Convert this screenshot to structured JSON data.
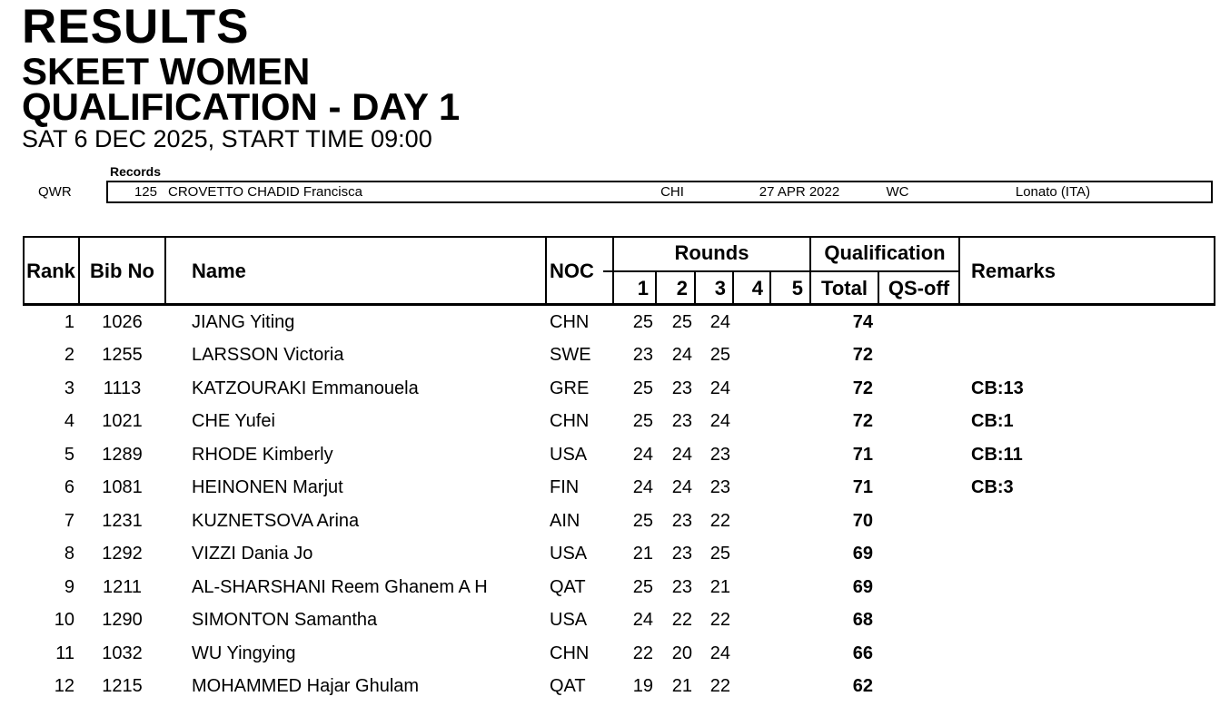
{
  "page": {
    "title": "RESULTS",
    "event": "SKEET WOMEN",
    "stage": "QUALIFICATION - DAY 1",
    "date_line": "SAT 6 DEC 2025, START TIME 09:00"
  },
  "records": {
    "section_label": "Records",
    "rows": [
      {
        "type": "QWR",
        "score": "125",
        "holder": "CROVETTO CHADID Francisca",
        "noc": "CHI",
        "date": "27 APR 2022",
        "event": "WC",
        "location": "Lonato (ITA)"
      }
    ]
  },
  "results_table": {
    "headers": {
      "rank": "Rank",
      "bib": "Bib No",
      "name": "Name",
      "noc": "NOC",
      "rounds_group": "Rounds",
      "round_numbers": [
        "1",
        "2",
        "3",
        "4",
        "5"
      ],
      "qualification_group": "Qualification",
      "total": "Total",
      "qs_off": "QS-off",
      "remarks": "Remarks"
    },
    "rows": [
      {
        "rank": "1",
        "bib": "1026",
        "name": "JIANG Yiting",
        "noc": "CHN",
        "rounds": [
          "25",
          "25",
          "24",
          "",
          ""
        ],
        "total": "74",
        "qs_off": "",
        "remarks": ""
      },
      {
        "rank": "2",
        "bib": "1255",
        "name": "LARSSON Victoria",
        "noc": "SWE",
        "rounds": [
          "23",
          "24",
          "25",
          "",
          ""
        ],
        "total": "72",
        "qs_off": "",
        "remarks": ""
      },
      {
        "rank": "3",
        "bib": "1113",
        "name": "KATZOURAKI Emmanouela",
        "noc": "GRE",
        "rounds": [
          "25",
          "23",
          "24",
          "",
          ""
        ],
        "total": "72",
        "qs_off": "",
        "remarks": "CB:13"
      },
      {
        "rank": "4",
        "bib": "1021",
        "name": "CHE Yufei",
        "noc": "CHN",
        "rounds": [
          "25",
          "23",
          "24",
          "",
          ""
        ],
        "total": "72",
        "qs_off": "",
        "remarks": "CB:1"
      },
      {
        "rank": "5",
        "bib": "1289",
        "name": "RHODE Kimberly",
        "noc": "USA",
        "rounds": [
          "24",
          "24",
          "23",
          "",
          ""
        ],
        "total": "71",
        "qs_off": "",
        "remarks": "CB:11"
      },
      {
        "rank": "6",
        "bib": "1081",
        "name": "HEINONEN Marjut",
        "noc": "FIN",
        "rounds": [
          "24",
          "24",
          "23",
          "",
          ""
        ],
        "total": "71",
        "qs_off": "",
        "remarks": "CB:3"
      },
      {
        "rank": "7",
        "bib": "1231",
        "name": "KUZNETSOVA Arina",
        "noc": "AIN",
        "rounds": [
          "25",
          "23",
          "22",
          "",
          ""
        ],
        "total": "70",
        "qs_off": "",
        "remarks": ""
      },
      {
        "rank": "8",
        "bib": "1292",
        "name": "VIZZI Dania Jo",
        "noc": "USA",
        "rounds": [
          "21",
          "23",
          "25",
          "",
          ""
        ],
        "total": "69",
        "qs_off": "",
        "remarks": ""
      },
      {
        "rank": "9",
        "bib": "1211",
        "name": "AL-SHARSHANI Reem Ghanem A H",
        "noc": "QAT",
        "rounds": [
          "25",
          "23",
          "21",
          "",
          ""
        ],
        "total": "69",
        "qs_off": "",
        "remarks": ""
      },
      {
        "rank": "10",
        "bib": "1290",
        "name": "SIMONTON Samantha",
        "noc": "USA",
        "rounds": [
          "24",
          "22",
          "22",
          "",
          ""
        ],
        "total": "68",
        "qs_off": "",
        "remarks": ""
      },
      {
        "rank": "11",
        "bib": "1032",
        "name": "WU Yingying",
        "noc": "CHN",
        "rounds": [
          "22",
          "20",
          "24",
          "",
          ""
        ],
        "total": "66",
        "qs_off": "",
        "remarks": ""
      },
      {
        "rank": "12",
        "bib": "1215",
        "name": "MOHAMMED Hajar Ghulam",
        "noc": "QAT",
        "rounds": [
          "19",
          "21",
          "22",
          "",
          ""
        ],
        "total": "62",
        "qs_off": "",
        "remarks": ""
      }
    ]
  },
  "colors": {
    "text": "#000000",
    "background": "#ffffff",
    "border": "#000000"
  }
}
